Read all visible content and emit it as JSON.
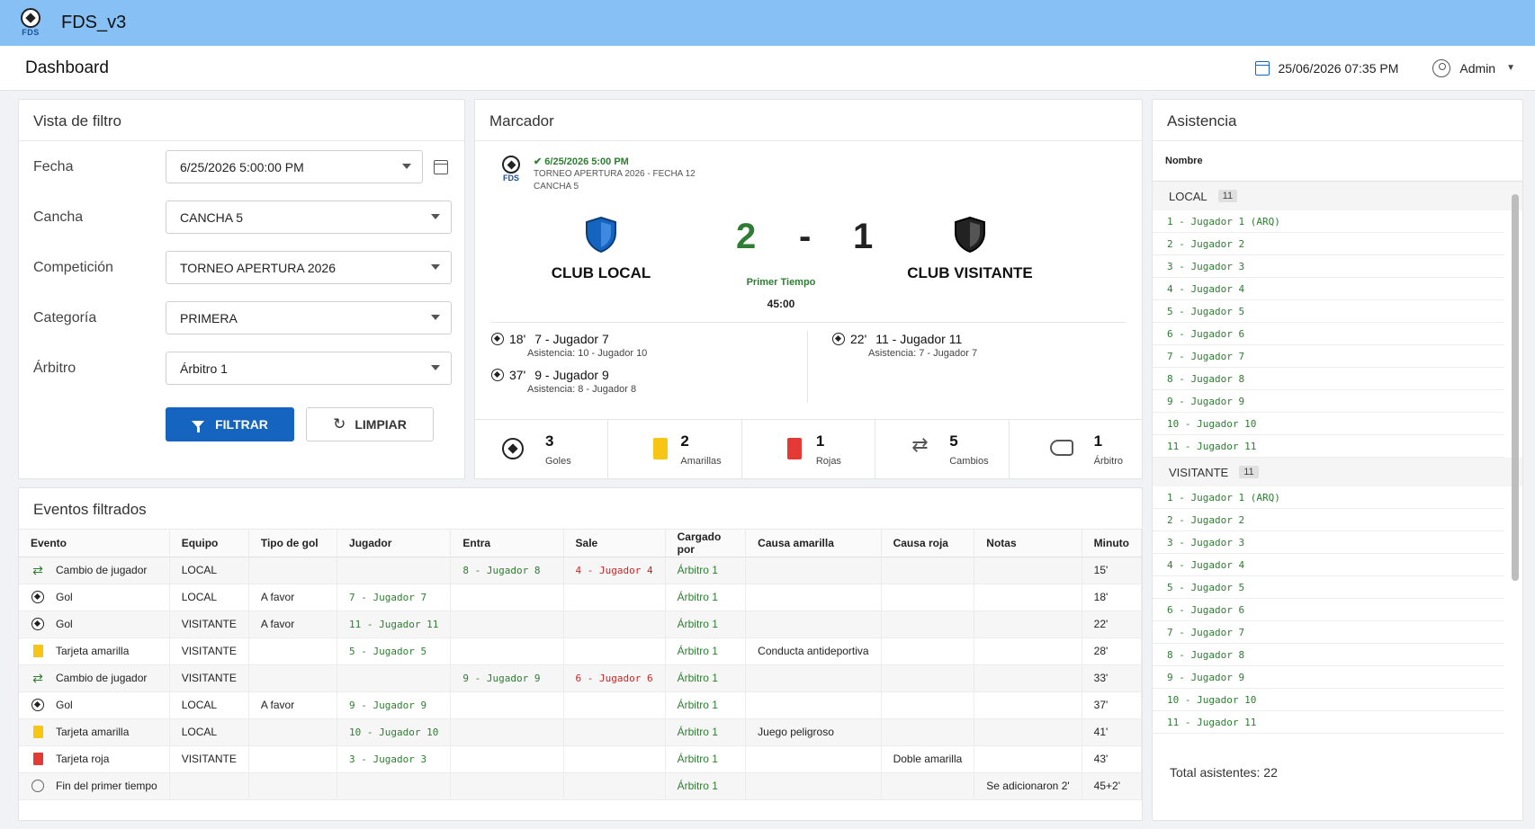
{
  "app": {
    "title": "FDS_v3",
    "logo_text": "FDS"
  },
  "header": {
    "title": "Dashboard",
    "datetime": "25/06/2026 07:35 PM",
    "user": "Admin"
  },
  "filter": {
    "title": "Vista de filtro",
    "fields": [
      {
        "label": "Fecha",
        "value": "6/25/2026 5:00:00 PM"
      },
      {
        "label": "Cancha",
        "value": "CANCHA 5"
      },
      {
        "label": "Competición",
        "value": "TORNEO APERTURA 2026"
      },
      {
        "label": "Categoría",
        "value": "PRIMERA"
      },
      {
        "label": "Árbitro",
        "value": "Árbitro 1"
      }
    ],
    "filter_btn": "FILTRAR",
    "clear_btn": "LIMPIAR"
  },
  "score": {
    "title": "Marcador",
    "match_date": "✔ 6/25/2026 5:00 PM",
    "tournament": "TORNEO APERTURA 2026 - FECHA 12",
    "field": "CANCHA 5",
    "home": {
      "name": "CLUB LOCAL",
      "score": "2",
      "color": "#1565c0"
    },
    "away": {
      "name": "CLUB VISITANTE",
      "score": "1",
      "color": "#222222"
    },
    "dash": "-",
    "period": "Primer Tiempo",
    "clock": "45:00",
    "home_goals": [
      {
        "minute": "18'",
        "player": "7 - Jugador 7",
        "assist": "Asistencia: 10 - Jugador 10"
      },
      {
        "minute": "37'",
        "player": "9 - Jugador 9",
        "assist": "Asistencia: 8 - Jugador 8"
      }
    ],
    "away_goals": [
      {
        "minute": "22'",
        "player": "11 - Jugador 11",
        "assist": "Asistencia: 7 - Jugador 7"
      }
    ],
    "stats": [
      {
        "icon": "soccer-ball-icon",
        "value": "3",
        "label": "Goles"
      },
      {
        "icon": "yellow-card-icon",
        "value": "2",
        "label": "Amarillas"
      },
      {
        "icon": "red-card-icon",
        "value": "1",
        "label": "Rojas"
      },
      {
        "icon": "swap-icon",
        "value": "5",
        "label": "Cambios"
      },
      {
        "icon": "whistle-icon",
        "value": "1",
        "label": "Árbitro"
      }
    ]
  },
  "events": {
    "title": "Eventos filtrados",
    "columns": [
      "Evento",
      "Equipo",
      "Tipo de gol",
      "Jugador",
      "Entra",
      "Sale",
      "Cargado por",
      "Causa amarilla",
      "Causa roja",
      "Notas",
      "Minuto"
    ],
    "rows": [
      {
        "icon": "swap-icon",
        "evento": "Cambio de jugador",
        "equipo": "LOCAL",
        "tipo": "",
        "jugador": "",
        "entra": "8 - Jugador 8",
        "sale": "4 - Jugador 4",
        "cargado": "Árbitro 1",
        "amarilla": "",
        "roja": "",
        "notas": "",
        "minuto": "15'"
      },
      {
        "icon": "soccer-ball-icon",
        "evento": "Gol",
        "equipo": "LOCAL",
        "tipo": "A favor",
        "jugador": "7 - Jugador 7",
        "entra": "",
        "sale": "",
        "cargado": "Árbitro 1",
        "amarilla": "",
        "roja": "",
        "notas": "",
        "minuto": "18'"
      },
      {
        "icon": "soccer-ball-icon",
        "evento": "Gol",
        "equipo": "VISITANTE",
        "tipo": "A favor",
        "jugador": "11 - Jugador 11",
        "entra": "",
        "sale": "",
        "cargado": "Árbitro 1",
        "amarilla": "",
        "roja": "",
        "notas": "",
        "minuto": "22'"
      },
      {
        "icon": "yellow-card-icon",
        "evento": "Tarjeta amarilla",
        "equipo": "VISITANTE",
        "tipo": "",
        "jugador": "5 - Jugador 5",
        "entra": "",
        "sale": "",
        "cargado": "Árbitro 1",
        "amarilla": "Conducta antideportiva",
        "roja": "",
        "notas": "",
        "minuto": "28'"
      },
      {
        "icon": "swap-icon",
        "evento": "Cambio de jugador",
        "equipo": "VISITANTE",
        "tipo": "",
        "jugador": "",
        "entra": "9 - Jugador 9",
        "sale": "6 - Jugador 6",
        "cargado": "Árbitro 1",
        "amarilla": "",
        "roja": "",
        "notas": "",
        "minuto": "33'"
      },
      {
        "icon": "soccer-ball-icon",
        "evento": "Gol",
        "equipo": "LOCAL",
        "tipo": "A favor",
        "jugador": "9 - Jugador 9",
        "entra": "",
        "sale": "",
        "cargado": "Árbitro 1",
        "amarilla": "",
        "roja": "",
        "notas": "",
        "minuto": "37'"
      },
      {
        "icon": "yellow-card-icon",
        "evento": "Tarjeta amarilla",
        "equipo": "LOCAL",
        "tipo": "",
        "jugador": "10 - Jugador 10",
        "entra": "",
        "sale": "",
        "cargado": "Árbitro 1",
        "amarilla": "Juego peligroso",
        "roja": "",
        "notas": "",
        "minuto": "41'"
      },
      {
        "icon": "red-card-icon",
        "evento": "Tarjeta roja",
        "equipo": "VISITANTE",
        "tipo": "",
        "jugador": "3 - Jugador 3",
        "entra": "",
        "sale": "",
        "cargado": "Árbitro 1",
        "amarilla": "",
        "roja": "Doble amarilla",
        "notas": "",
        "minuto": "43'"
      },
      {
        "icon": "clock-icon",
        "evento": "Fin del primer tiempo",
        "equipo": "",
        "tipo": "",
        "jugador": "",
        "entra": "",
        "sale": "",
        "cargado": "Árbitro 1",
        "amarilla": "",
        "roja": "",
        "notas": "Se adicionaron 2'",
        "minuto": "45+2'"
      }
    ]
  },
  "attendance": {
    "title": "Asistencia",
    "column": "Nombre",
    "groups": [
      {
        "name": "LOCAL",
        "count": "11",
        "players": [
          "1 - Jugador 1 (ARQ)",
          "2 - Jugador 2",
          "3 - Jugador 3",
          "4 - Jugador 4",
          "5 - Jugador 5",
          "6 - Jugador 6",
          "7 - Jugador 7",
          "8 - Jugador 8",
          "9 - Jugador 9",
          "10 - Jugador 10",
          "11 - Jugador 11"
        ]
      },
      {
        "name": "VISITANTE",
        "count": "11",
        "players": [
          "1 - Jugador 1 (ARQ)",
          "2 - Jugador 2",
          "3 - Jugador 3",
          "4 - Jugador 4",
          "5 - Jugador 5",
          "6 - Jugador 6",
          "7 - Jugador 7",
          "8 - Jugador 8",
          "9 - Jugador 9",
          "10 - Jugador 10",
          "11 - Jugador 11"
        ]
      }
    ],
    "total_label": "Total asistentes:",
    "total_value": "22"
  }
}
